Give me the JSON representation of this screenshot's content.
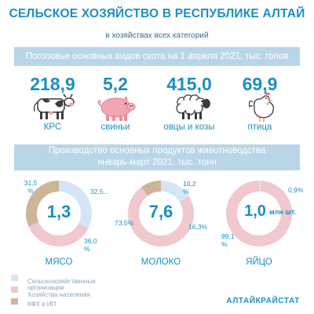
{
  "header": {
    "title": "СЕЛЬСКОЕ ХОЗЯЙСТВО В РЕСПУБЛИКЕ АЛТАЙ",
    "subtitle": "в хозяйствах всех категорий"
  },
  "livestock": {
    "heading": "Поголовье основных видов скота на 1 апреля 2021, тыс. голов",
    "items": [
      {
        "value": "218,9",
        "label": "КРС",
        "icon": "cow-icon"
      },
      {
        "value": "5,2",
        "label": "свиньи",
        "icon": "pig-icon"
      },
      {
        "value": "415,0",
        "label": "овцы и козы",
        "icon": "sheep-icon"
      },
      {
        "value": "69,9",
        "label": "птица",
        "icon": "chicken-icon"
      }
    ]
  },
  "production": {
    "heading_line1": "Производство основных продуктов животноводства",
    "heading_line2": "январь-март 2021, тыс. тонн"
  },
  "colors": {
    "agri_orgs": "#d4e6f5",
    "households": "#f0c8cd",
    "farms_ip": "#cdb59a",
    "accent": "#1c8fc2",
    "band": "#b8d6e8"
  },
  "chart_data": [
    {
      "type": "pie",
      "title": "МЯСО",
      "center_label": "1,3",
      "categories": [
        "Сельскохозяйственные организации",
        "Хозяйства населения",
        "КФХ и ИП"
      ],
      "values": [
        32.5,
        36.0,
        31.5
      ],
      "value_labels": [
        "32,5...",
        "36,0 %",
        "31,5 %"
      ]
    },
    {
      "type": "pie",
      "title": "МОЛОКО",
      "center_label": "7,6",
      "categories": [
        "Сельскохозяйственные организации",
        "Хозяйства населения",
        "КФХ и ИП"
      ],
      "values": [
        16.3,
        73.5,
        10.2
      ],
      "value_labels": [
        "16,3%",
        "73,5%",
        "10,2 %"
      ]
    },
    {
      "type": "pie",
      "title": "ЯЙЦО",
      "center_label": "1,0",
      "center_unit": "млн шт.",
      "categories": [
        "Сельскохозяйственные организации",
        "Хозяйства населения",
        "КФХ и ИП"
      ],
      "values": [
        0.9,
        99.1,
        0.0
      ],
      "value_labels": [
        "0,9%",
        "99,1 %",
        ""
      ]
    }
  ],
  "legend": [
    {
      "label_lines": [
        "Сельскохозяйственные",
        "организации"
      ]
    },
    {
      "label_lines": [
        "Хозяйства населения"
      ]
    },
    {
      "label_lines": [
        "КФХ и ИП"
      ]
    }
  ],
  "footer": {
    "brand": "АЛТАЙКРАЙСТАТ"
  }
}
